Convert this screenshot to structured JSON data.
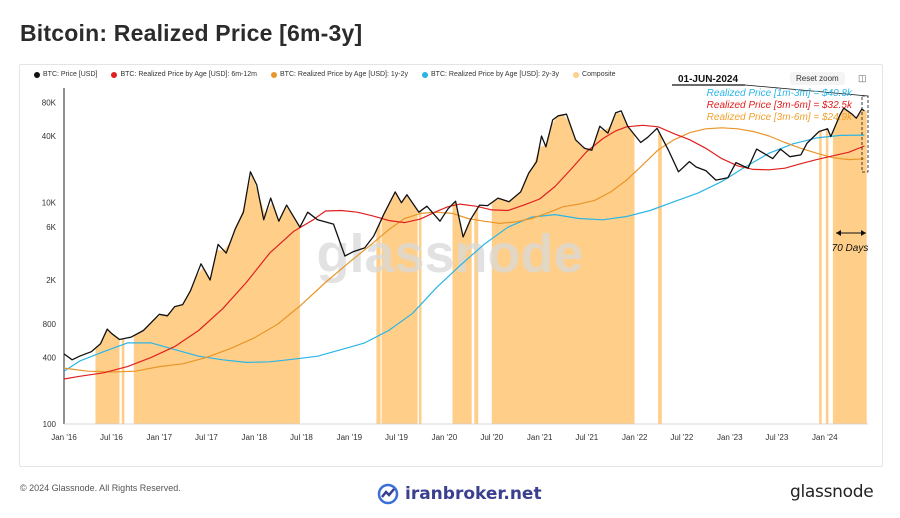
{
  "title": "Bitcoin: Realized Price [6m-3y]",
  "legend": [
    {
      "label": "BTC: Price [USD]",
      "color": "#111111"
    },
    {
      "label": "BTC: Realized Price by Age [USD]: 6m-12m",
      "color": "#e02020"
    },
    {
      "label": "BTC: Realized Price by Age [USD]: 1y-2y",
      "color": "#e8962a"
    },
    {
      "label": "BTC: Realized Price by Age [USD]: 2y-3y",
      "color": "#2bb5e6"
    },
    {
      "label": "Composite",
      "color": "#ffd08a"
    }
  ],
  "toolbar": {
    "reset_label": "Reset zoom"
  },
  "annotations": {
    "date": "01-JUN-2024",
    "line1": "Realized Price [1m-3m] = $40.8k",
    "line2": "Realized Price [3m-6m] = $32.5k",
    "line3": "Realized Price [3m-6m] = $24.9k",
    "days": "70 Days",
    "line1_color": "#2bb5e6",
    "line2_color": "#e02020",
    "line3_color": "#f0a030"
  },
  "watermark": "glassnode",
  "footer": {
    "copyright": "© 2024 Glassnode. All Rights Reserved.",
    "site": "iranbroker.net",
    "brand": "glassnode"
  },
  "chart_data": {
    "type": "line",
    "yscale": "log",
    "ylim": [
      100,
      100000
    ],
    "xlim": [
      "2016-01-01",
      "2024-06-15"
    ],
    "yticks": [
      {
        "label": "100",
        "v": 100
      },
      {
        "label": "400",
        "v": 400
      },
      {
        "label": "800",
        "v": 800
      },
      {
        "label": "2K",
        "v": 2000
      },
      {
        "label": "6K",
        "v": 6000
      },
      {
        "label": "10K",
        "v": 10000
      },
      {
        "label": "40K",
        "v": 40000
      },
      {
        "label": "80K",
        "v": 80000
      }
    ],
    "xticks": [
      {
        "label": "Jan '16",
        "d": "2016-01-01"
      },
      {
        "label": "Jul '16",
        "d": "2016-07-01"
      },
      {
        "label": "Jan '17",
        "d": "2017-01-01"
      },
      {
        "label": "Jul '17",
        "d": "2017-07-01"
      },
      {
        "label": "Jan '18",
        "d": "2018-01-01"
      },
      {
        "label": "Jul '18",
        "d": "2018-07-01"
      },
      {
        "label": "Jan '19",
        "d": "2019-01-01"
      },
      {
        "label": "Jul '19",
        "d": "2019-07-01"
      },
      {
        "label": "Jan '20",
        "d": "2020-01-01"
      },
      {
        "label": "Jul '20",
        "d": "2020-07-01"
      },
      {
        "label": "Jan '21",
        "d": "2021-01-01"
      },
      {
        "label": "Jul '21",
        "d": "2021-07-01"
      },
      {
        "label": "Jan '22",
        "d": "2022-01-01"
      },
      {
        "label": "Jul '22",
        "d": "2022-07-01"
      },
      {
        "label": "Jan '23",
        "d": "2023-01-01"
      },
      {
        "label": "Jul '23",
        "d": "2023-07-01"
      },
      {
        "label": "Jan '24",
        "d": "2024-01-01"
      }
    ],
    "composite_periods": [
      [
        "2016-05-01",
        "2016-08-01"
      ],
      [
        "2016-08-10",
        "2016-08-20"
      ],
      [
        "2016-09-25",
        "2018-06-25"
      ],
      [
        "2019-04-15",
        "2019-05-01"
      ],
      [
        "2019-05-05",
        "2019-09-20"
      ],
      [
        "2019-09-25",
        "2019-10-05"
      ],
      [
        "2020-02-01",
        "2020-04-15"
      ],
      [
        "2020-04-25",
        "2020-05-10"
      ],
      [
        "2020-07-01",
        "2021-12-31"
      ],
      [
        "2022-04-01",
        "2022-04-15"
      ],
      [
        "2023-12-10",
        "2023-12-20"
      ],
      [
        "2024-01-05",
        "2024-01-15"
      ],
      [
        "2024-02-01",
        "2024-06-10"
      ]
    ],
    "series": [
      {
        "name": "BTC: Price [USD]",
        "color": "#111111",
        "points": [
          [
            "2016-01-01",
            430
          ],
          [
            "2016-02-01",
            380
          ],
          [
            "2016-03-01",
            410
          ],
          [
            "2016-04-15",
            450
          ],
          [
            "2016-05-20",
            530
          ],
          [
            "2016-06-15",
            720
          ],
          [
            "2016-07-01",
            660
          ],
          [
            "2016-08-01",
            580
          ],
          [
            "2016-09-15",
            610
          ],
          [
            "2016-11-01",
            700
          ],
          [
            "2017-01-01",
            980
          ],
          [
            "2017-02-01",
            950
          ],
          [
            "2017-03-01",
            1150
          ],
          [
            "2017-04-01",
            1200
          ],
          [
            "2017-05-01",
            1600
          ],
          [
            "2017-06-10",
            2800
          ],
          [
            "2017-07-15",
            2000
          ],
          [
            "2017-08-15",
            4200
          ],
          [
            "2017-09-15",
            3500
          ],
          [
            "2017-10-20",
            5800
          ],
          [
            "2017-11-20",
            8200
          ],
          [
            "2017-12-17",
            19000
          ],
          [
            "2018-01-10",
            14500
          ],
          [
            "2018-02-06",
            7000
          ],
          [
            "2018-03-05",
            11000
          ],
          [
            "2018-04-05",
            6800
          ],
          [
            "2018-05-05",
            9500
          ],
          [
            "2018-06-25",
            6000
          ],
          [
            "2018-07-25",
            8200
          ],
          [
            "2018-09-01",
            7000
          ],
          [
            "2018-11-01",
            6400
          ],
          [
            "2018-12-15",
            3300
          ],
          [
            "2019-01-15",
            3600
          ],
          [
            "2019-03-01",
            3900
          ],
          [
            "2019-04-05",
            5000
          ],
          [
            "2019-05-15",
            8000
          ],
          [
            "2019-06-26",
            12500
          ],
          [
            "2019-07-20",
            10000
          ],
          [
            "2019-08-10",
            11800
          ],
          [
            "2019-09-25",
            8200
          ],
          [
            "2019-10-26",
            9300
          ],
          [
            "2019-12-15",
            6800
          ],
          [
            "2020-01-15",
            8800
          ],
          [
            "2020-02-13",
            10300
          ],
          [
            "2020-03-13",
            4900
          ],
          [
            "2020-04-10",
            7000
          ],
          [
            "2020-05-15",
            9500
          ],
          [
            "2020-06-15",
            9400
          ],
          [
            "2020-07-25",
            11000
          ],
          [
            "2020-09-05",
            10200
          ],
          [
            "2020-10-20",
            12500
          ],
          [
            "2020-11-20",
            18500
          ],
          [
            "2020-12-20",
            23500
          ],
          [
            "2021-01-08",
            40000
          ],
          [
            "2021-01-25",
            32000
          ],
          [
            "2021-02-20",
            56000
          ],
          [
            "2021-03-13",
            61000
          ],
          [
            "2021-04-14",
            63000
          ],
          [
            "2021-05-19",
            37000
          ],
          [
            "2021-06-22",
            31000
          ],
          [
            "2021-07-20",
            29800
          ],
          [
            "2021-08-20",
            49000
          ],
          [
            "2021-09-20",
            42500
          ],
          [
            "2021-10-20",
            65000
          ],
          [
            "2021-11-10",
            67500
          ],
          [
            "2021-12-05",
            49000
          ],
          [
            "2022-01-24",
            35000
          ],
          [
            "2022-02-20",
            39000
          ],
          [
            "2022-03-28",
            47000
          ],
          [
            "2022-05-10",
            30000
          ],
          [
            "2022-06-18",
            19000
          ],
          [
            "2022-07-30",
            23500
          ],
          [
            "2022-08-25",
            21000
          ],
          [
            "2022-10-01",
            19500
          ],
          [
            "2022-11-09",
            16000
          ],
          [
            "2022-12-25",
            16800
          ],
          [
            "2023-01-25",
            23000
          ],
          [
            "2023-03-12",
            20500
          ],
          [
            "2023-04-14",
            30500
          ],
          [
            "2023-06-15",
            25000
          ],
          [
            "2023-07-15",
            30500
          ],
          [
            "2023-08-20",
            26000
          ],
          [
            "2023-10-01",
            27000
          ],
          [
            "2023-10-25",
            34500
          ],
          [
            "2023-12-10",
            44000
          ],
          [
            "2024-01-12",
            46500
          ],
          [
            "2024-01-24",
            39500
          ],
          [
            "2024-02-28",
            62000
          ],
          [
            "2024-03-14",
            71500
          ],
          [
            "2024-04-15",
            63000
          ],
          [
            "2024-05-01",
            58000
          ],
          [
            "2024-05-22",
            70000
          ],
          [
            "2024-06-01",
            67500
          ]
        ]
      },
      {
        "name": "BTC: Realized Price by Age [USD]: 6m-12m",
        "color": "#e02020",
        "points": [
          [
            "2016-01-01",
            255
          ],
          [
            "2016-03-01",
            270
          ],
          [
            "2016-06-01",
            290
          ],
          [
            "2016-09-01",
            330
          ],
          [
            "2016-12-01",
            400
          ],
          [
            "2017-03-01",
            500
          ],
          [
            "2017-06-01",
            700
          ],
          [
            "2017-09-01",
            1100
          ],
          [
            "2017-12-01",
            1900
          ],
          [
            "2018-03-01",
            3500
          ],
          [
            "2018-06-01",
            5500
          ],
          [
            "2018-08-15",
            7000
          ],
          [
            "2018-10-01",
            8400
          ],
          [
            "2018-12-01",
            8500
          ],
          [
            "2019-02-01",
            8200
          ],
          [
            "2019-04-01",
            7600
          ],
          [
            "2019-06-01",
            6900
          ],
          [
            "2019-08-01",
            6600
          ],
          [
            "2019-10-01",
            7100
          ],
          [
            "2019-12-01",
            8300
          ],
          [
            "2020-01-15",
            9200
          ],
          [
            "2020-03-01",
            9700
          ],
          [
            "2020-05-01",
            9300
          ],
          [
            "2020-07-01",
            8600
          ],
          [
            "2020-09-01",
            8500
          ],
          [
            "2020-11-01",
            9500
          ],
          [
            "2021-01-01",
            10800
          ],
          [
            "2021-03-01",
            14000
          ],
          [
            "2021-05-01",
            20000
          ],
          [
            "2021-07-01",
            29000
          ],
          [
            "2021-09-01",
            38000
          ],
          [
            "2021-10-20",
            44500
          ],
          [
            "2021-12-01",
            48500
          ],
          [
            "2022-02-01",
            50000
          ],
          [
            "2022-04-01",
            48500
          ],
          [
            "2022-06-01",
            42000
          ],
          [
            "2022-08-01",
            37000
          ],
          [
            "2022-10-01",
            31000
          ],
          [
            "2022-12-01",
            25000
          ],
          [
            "2023-02-01",
            21500
          ],
          [
            "2023-04-01",
            20000
          ],
          [
            "2023-06-01",
            19800
          ],
          [
            "2023-08-01",
            20500
          ],
          [
            "2023-10-01",
            22500
          ],
          [
            "2023-12-01",
            24500
          ],
          [
            "2024-02-01",
            26500
          ],
          [
            "2024-04-01",
            28500
          ],
          [
            "2024-06-01",
            32500
          ]
        ]
      },
      {
        "name": "BTC: Realized Price by Age [USD]: 1y-2y",
        "color": "#e8962a",
        "points": [
          [
            "2016-01-01",
            320
          ],
          [
            "2016-04-01",
            300
          ],
          [
            "2016-07-01",
            295
          ],
          [
            "2016-10-01",
            300
          ],
          [
            "2017-01-01",
            330
          ],
          [
            "2017-04-01",
            350
          ],
          [
            "2017-07-01",
            400
          ],
          [
            "2017-10-01",
            480
          ],
          [
            "2018-01-01",
            600
          ],
          [
            "2018-04-01",
            800
          ],
          [
            "2018-07-01",
            1200
          ],
          [
            "2018-10-01",
            1900
          ],
          [
            "2019-01-01",
            2900
          ],
          [
            "2019-04-01",
            4300
          ],
          [
            "2019-06-01",
            5700
          ],
          [
            "2019-08-01",
            7200
          ],
          [
            "2019-10-01",
            8000
          ],
          [
            "2019-12-01",
            8200
          ],
          [
            "2020-02-01",
            8000
          ],
          [
            "2020-04-01",
            7200
          ],
          [
            "2020-06-01",
            6800
          ],
          [
            "2020-08-01",
            6500
          ],
          [
            "2020-10-01",
            6700
          ],
          [
            "2020-12-01",
            7200
          ],
          [
            "2021-02-01",
            8100
          ],
          [
            "2021-04-01",
            9200
          ],
          [
            "2021-06-01",
            9700
          ],
          [
            "2021-08-01",
            10500
          ],
          [
            "2021-10-01",
            12500
          ],
          [
            "2021-12-01",
            16000
          ],
          [
            "2022-02-01",
            22000
          ],
          [
            "2022-04-01",
            30000
          ],
          [
            "2022-06-01",
            37000
          ],
          [
            "2022-08-01",
            43000
          ],
          [
            "2022-10-01",
            46500
          ],
          [
            "2022-12-01",
            47500
          ],
          [
            "2023-02-01",
            46500
          ],
          [
            "2023-04-01",
            44000
          ],
          [
            "2023-06-01",
            40000
          ],
          [
            "2023-08-01",
            35000
          ],
          [
            "2023-10-01",
            31000
          ],
          [
            "2023-12-01",
            28000
          ],
          [
            "2024-02-01",
            25500
          ],
          [
            "2024-04-01",
            24500
          ],
          [
            "2024-06-01",
            24900
          ]
        ]
      },
      {
        "name": "BTC: Realized Price by Age [USD]: 2y-3y",
        "color": "#2bb5e6",
        "points": [
          [
            "2016-01-01",
            300
          ],
          [
            "2016-03-01",
            370
          ],
          [
            "2016-06-01",
            450
          ],
          [
            "2016-09-01",
            540
          ],
          [
            "2016-12-01",
            540
          ],
          [
            "2017-03-01",
            470
          ],
          [
            "2017-06-01",
            410
          ],
          [
            "2017-09-01",
            380
          ],
          [
            "2017-12-01",
            360
          ],
          [
            "2018-03-01",
            365
          ],
          [
            "2018-06-01",
            385
          ],
          [
            "2018-09-01",
            410
          ],
          [
            "2018-12-01",
            470
          ],
          [
            "2019-03-01",
            540
          ],
          [
            "2019-06-01",
            700
          ],
          [
            "2019-09-01",
            1000
          ],
          [
            "2019-12-01",
            1700
          ],
          [
            "2020-03-01",
            2700
          ],
          [
            "2020-06-01",
            4200
          ],
          [
            "2020-09-01",
            6000
          ],
          [
            "2020-12-01",
            7400
          ],
          [
            "2021-03-01",
            7800
          ],
          [
            "2021-06-01",
            7200
          ],
          [
            "2021-09-01",
            7000
          ],
          [
            "2021-12-01",
            7500
          ],
          [
            "2022-03-01",
            8500
          ],
          [
            "2022-06-01",
            10200
          ],
          [
            "2022-09-01",
            12200
          ],
          [
            "2022-12-01",
            15500
          ],
          [
            "2023-03-01",
            21000
          ],
          [
            "2023-06-01",
            28000
          ],
          [
            "2023-09-01",
            34000
          ],
          [
            "2023-12-01",
            38500
          ],
          [
            "2024-03-01",
            40500
          ],
          [
            "2024-06-01",
            40800
          ]
        ]
      }
    ]
  }
}
